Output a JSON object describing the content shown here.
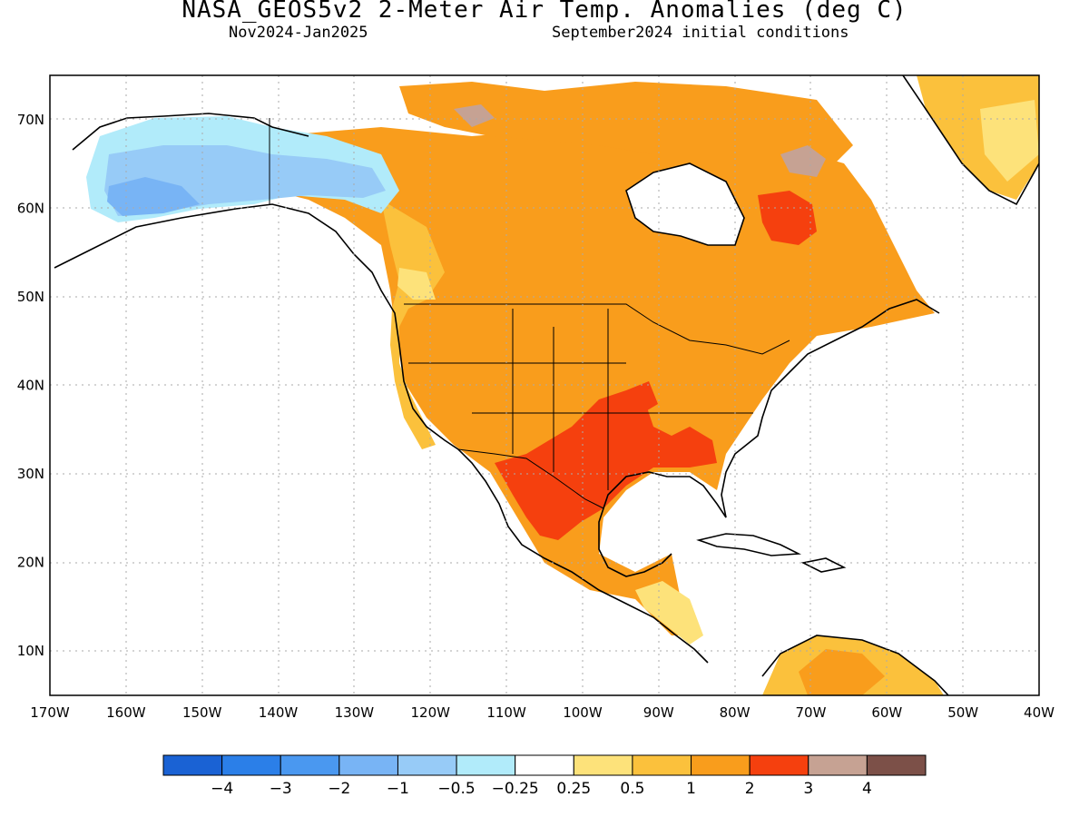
{
  "header": {
    "title": "NASA_GEOS5v2 2-Meter Air Temp. Anomalies (deg C)",
    "period": "Nov2024-Jan2025",
    "init": "September2024 initial conditions"
  },
  "map": {
    "lon_range": [
      -170,
      -40
    ],
    "lat_range": [
      5,
      75
    ],
    "lat_labels": [
      "10N",
      "20N",
      "30N",
      "40N",
      "50N",
      "60N",
      "70N"
    ],
    "lon_labels": [
      "170W",
      "160W",
      "150W",
      "140W",
      "130W",
      "120W",
      "110W",
      "100W",
      "90W",
      "80W",
      "70W",
      "60W",
      "50W",
      "40W"
    ],
    "grid": "dotted"
  },
  "colorbar": {
    "colors": [
      "#1a62d4",
      "#2b7fe8",
      "#4a98f0",
      "#78b4f5",
      "#97cbf7",
      "#b1ebfa",
      "#ffffff",
      "#fde27a",
      "#fbc13c",
      "#f99d1c",
      "#f5400e",
      "#c6a293",
      "#7c5048"
    ],
    "labels": [
      "−4",
      "−3",
      "−2",
      "−1",
      "−0.5",
      "−0.25",
      "0.25",
      "0.5",
      "1",
      "2",
      "3",
      "4"
    ]
  },
  "anomaly_regions": [
    {
      "name": "alaska-cold-core",
      "color": "#78b4f5"
    },
    {
      "name": "alaska-cold",
      "color": "#97cbf7"
    },
    {
      "name": "alaska-cool-fringe",
      "color": "#b1ebfa"
    },
    {
      "name": "canada-warm",
      "color": "#f99d1c"
    },
    {
      "name": "south-central-us-hot",
      "color": "#f5400e"
    },
    {
      "name": "quebec-hot",
      "color": "#f5400e"
    },
    {
      "name": "arctic-extreme",
      "color": "#c6a293"
    },
    {
      "name": "greenland-warm",
      "color": "#fbc13c"
    },
    {
      "name": "central-america-mild",
      "color": "#fde27a"
    },
    {
      "name": "south-america-warm",
      "color": "#fbc13c"
    }
  ]
}
